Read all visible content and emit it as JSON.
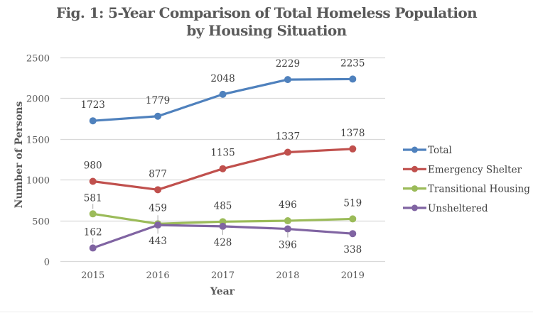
{
  "chart_data": {
    "type": "line",
    "title": [
      "Fig. 1: 5-Year Comparison of Total Homeless Population",
      "by Housing Situation"
    ],
    "xlabel": "Year",
    "ylabel": "Number of Persons",
    "x": [
      "2015",
      "2016",
      "2017",
      "2018",
      "2019"
    ],
    "ylim": [
      0,
      2500
    ],
    "yticks": [
      0,
      500,
      1000,
      1500,
      2000,
      2500
    ],
    "grid": true,
    "legend_position": "right",
    "series": [
      {
        "name": "Total",
        "color": "#4f81bd",
        "values": [
          1723,
          1779,
          2048,
          2229,
          2235
        ]
      },
      {
        "name": "Emergency Shelter",
        "color": "#c0504d",
        "values": [
          980,
          877,
          1135,
          1337,
          1378
        ]
      },
      {
        "name": "Transitional Housing",
        "color": "#9bbb59",
        "values": [
          581,
          459,
          485,
          496,
          519
        ]
      },
      {
        "name": "Unsheltered",
        "color": "#8064a2",
        "values": [
          162,
          443,
          428,
          396,
          338
        ]
      }
    ]
  }
}
